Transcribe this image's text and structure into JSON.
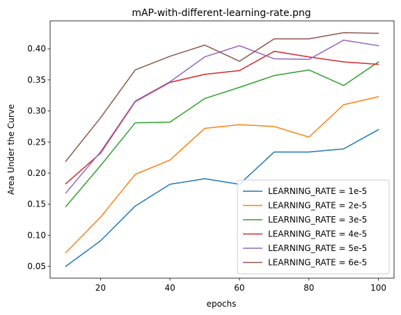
{
  "chart_data": {
    "type": "line",
    "title": "mAP-with-different-learning-rate.png",
    "xlabel": "epochs",
    "ylabel": "Area Under the Curve",
    "xlim": [
      5.5,
      104.5
    ],
    "ylim": [
      0.031,
      0.445
    ],
    "xticks": [
      20,
      40,
      60,
      80,
      100
    ],
    "yticks": [
      0.05,
      0.1,
      0.15,
      0.2,
      0.25,
      0.3,
      0.35,
      0.4
    ],
    "grid": false,
    "legend_position": "lower-right",
    "x": [
      10,
      20,
      30,
      40,
      50,
      60,
      70,
      80,
      90,
      100
    ],
    "series": [
      {
        "name": "LEARNING_RATE = 1e-5",
        "color": "#1f77b4",
        "values": [
          0.05,
          0.091,
          0.147,
          0.182,
          0.191,
          0.182,
          0.234,
          0.234,
          0.239,
          0.27
        ]
      },
      {
        "name": "LEARNING_RATE = 2e-5",
        "color": "#ff7f0e",
        "values": [
          0.072,
          0.129,
          0.198,
          0.221,
          0.272,
          0.278,
          0.275,
          0.258,
          0.31,
          0.323
        ]
      },
      {
        "name": "LEARNING_RATE = 3e-5",
        "color": "#2ca02c",
        "values": [
          0.146,
          0.212,
          0.281,
          0.282,
          0.32,
          0.338,
          0.357,
          0.366,
          0.341,
          0.379
        ]
      },
      {
        "name": "LEARNING_RATE = 4e-5",
        "color": "#d62728",
        "values": [
          0.183,
          0.232,
          0.315,
          0.346,
          0.359,
          0.365,
          0.396,
          0.387,
          0.379,
          0.375
        ]
      },
      {
        "name": "LEARNING_RATE = 5e-5",
        "color": "#9467bd",
        "values": [
          0.168,
          0.234,
          0.316,
          0.347,
          0.387,
          0.405,
          0.384,
          0.383,
          0.414,
          0.405
        ]
      },
      {
        "name": "LEARNING_RATE = 6e-5",
        "color": "#8c564b",
        "values": [
          0.219,
          0.289,
          0.366,
          0.388,
          0.406,
          0.38,
          0.416,
          0.416,
          0.426,
          0.425
        ]
      }
    ]
  }
}
